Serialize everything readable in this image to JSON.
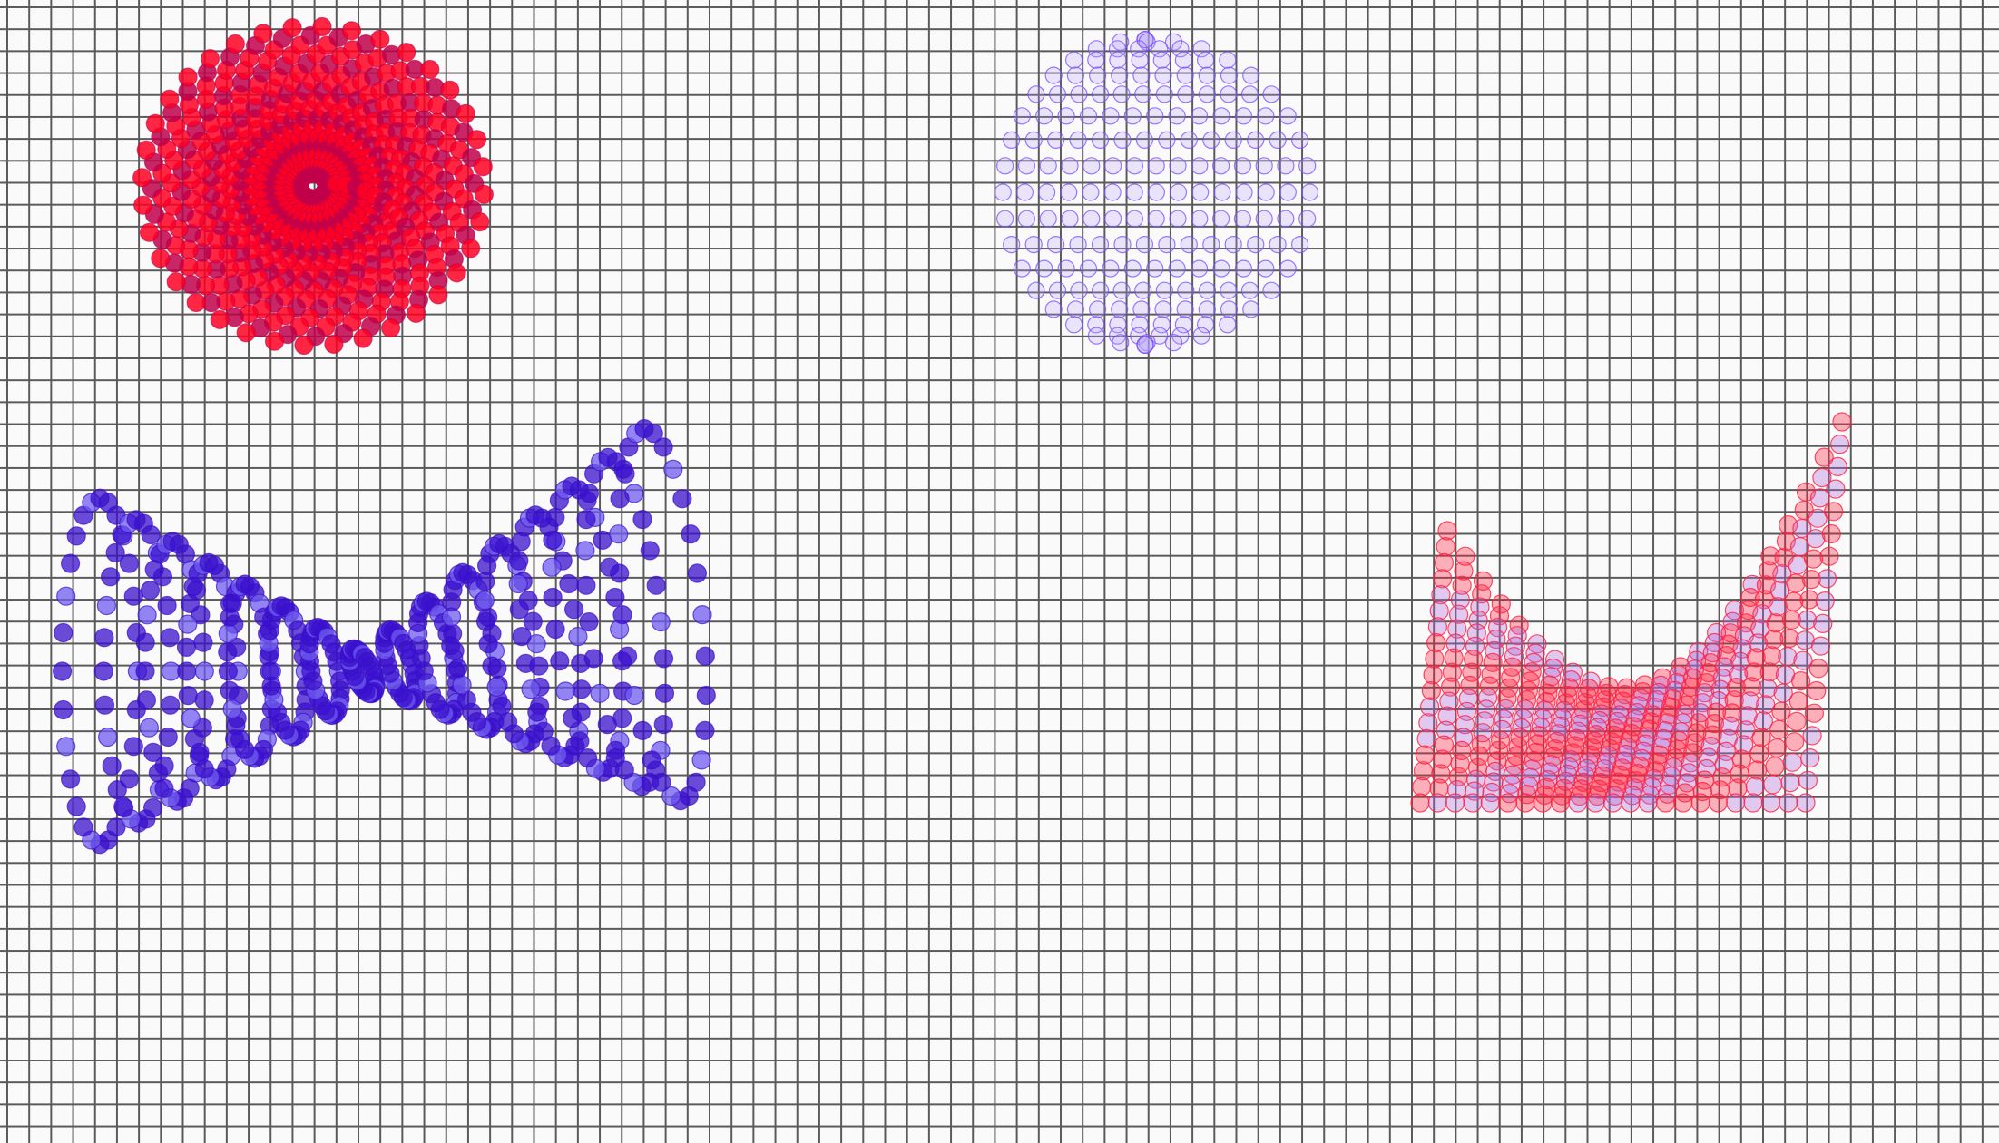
{
  "scene": {
    "background_color": "#fafafa",
    "grid_color": "#5a5a5a",
    "objects": [
      {
        "name": "sphere-red-spiral",
        "shape": "sphere",
        "style": "solid",
        "colors": [
          "#ff0022",
          "#c0004a"
        ]
      },
      {
        "name": "sphere-violet-wireframe",
        "shape": "sphere",
        "style": "wireframe",
        "colors": [
          "#7a4cff",
          "#b9a2ff"
        ]
      },
      {
        "name": "helix-blue-double-cone",
        "shape": "double-cone-helix",
        "style": "solid",
        "colors": [
          "#3a10cc",
          "#6f5cf0"
        ]
      },
      {
        "name": "saddle-red-wireframe",
        "shape": "hyperbolic-surface",
        "style": "wireframe",
        "colors": [
          "#ff2040",
          "#b36bd8"
        ]
      }
    ]
  }
}
